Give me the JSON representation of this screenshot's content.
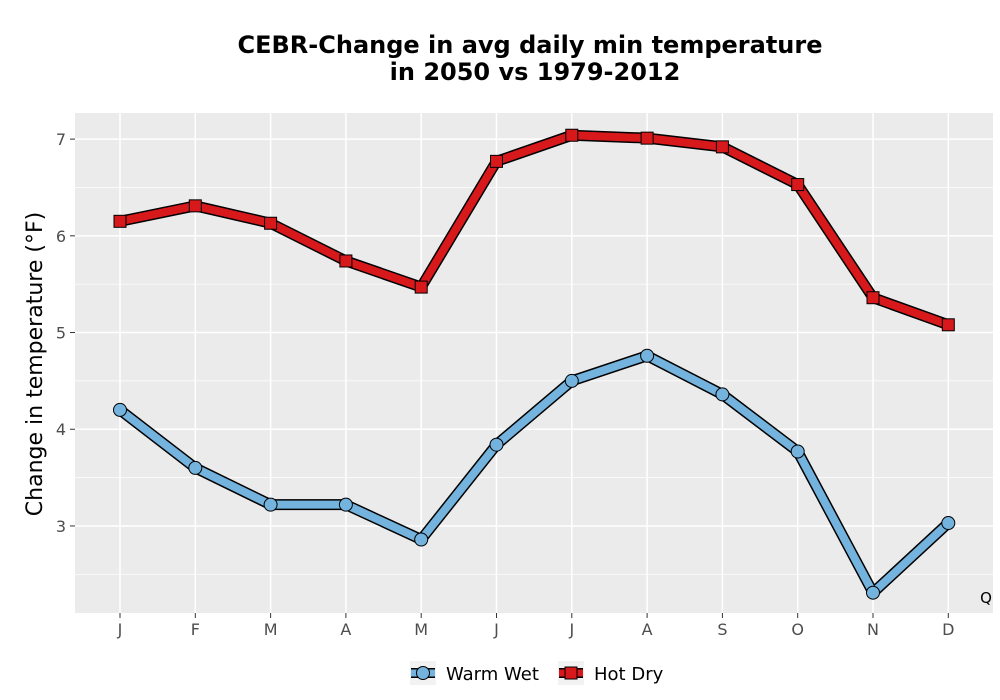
{
  "chart_data": {
    "type": "line",
    "title_lines": [
      "CEBR-Change in avg daily min temperature",
      "in 2050 vs 1979-2012"
    ],
    "xlabel": "",
    "ylabel": "Change in temperature (°F)",
    "categories": [
      "J",
      "F",
      "M",
      "A",
      "M",
      "J",
      "J",
      "A",
      "S",
      "O",
      "N",
      "D"
    ],
    "ylim": [
      2.1,
      7.27
    ],
    "yticks": [
      3,
      4,
      5,
      6,
      7
    ],
    "grid": true,
    "legend_position": "bottom",
    "corner_note": "Q",
    "series": [
      {
        "name": "Warm Wet",
        "color": "#74b3de",
        "marker": "circle",
        "values": [
          4.2,
          3.6,
          3.22,
          3.22,
          2.86,
          3.84,
          4.5,
          4.76,
          4.36,
          3.77,
          2.31,
          3.03
        ]
      },
      {
        "name": "Hot Dry",
        "color": "#d7191c",
        "marker": "square",
        "values": [
          6.15,
          6.31,
          6.13,
          5.74,
          5.47,
          6.77,
          7.04,
          7.01,
          6.92,
          6.53,
          5.36,
          5.08
        ]
      }
    ]
  }
}
